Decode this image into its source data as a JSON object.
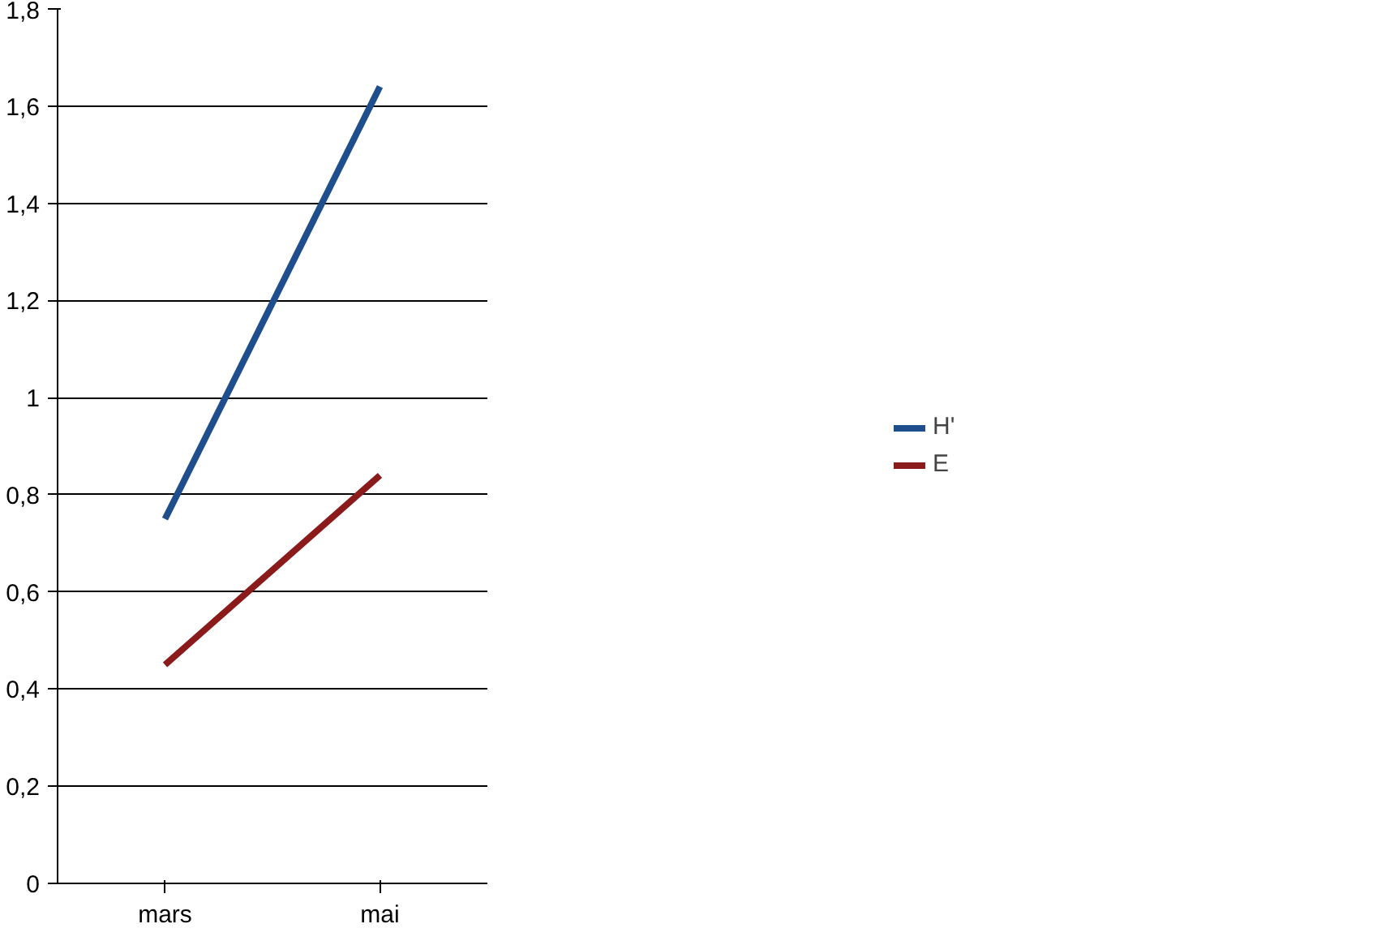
{
  "chart_data": {
    "type": "line",
    "categories": [
      "mars",
      "mai"
    ],
    "series": [
      {
        "name": "H'",
        "color": "#1f4e8c",
        "values": [
          0.75,
          1.64
        ]
      },
      {
        "name": "E",
        "color": "#8b1a1a",
        "values": [
          0.45,
          0.84
        ]
      }
    ],
    "ylim": [
      0,
      1.8
    ],
    "yticks": [
      0,
      {
        "value": 0.2,
        "label": "0,2"
      },
      {
        "value": 0.4,
        "label": "0,4"
      },
      {
        "value": 0.6,
        "label": "0,6"
      },
      {
        "value": 0.8,
        "label": "0,8"
      },
      1,
      {
        "value": 1.2,
        "label": "1,2"
      },
      {
        "value": 1.4,
        "label": "1,4"
      },
      {
        "value": 1.6,
        "label": "1,6"
      },
      {
        "value": 1.8,
        "label": "1,8"
      }
    ],
    "grid": "y",
    "legend": "right",
    "marker": "none",
    "line_style": "solid"
  }
}
